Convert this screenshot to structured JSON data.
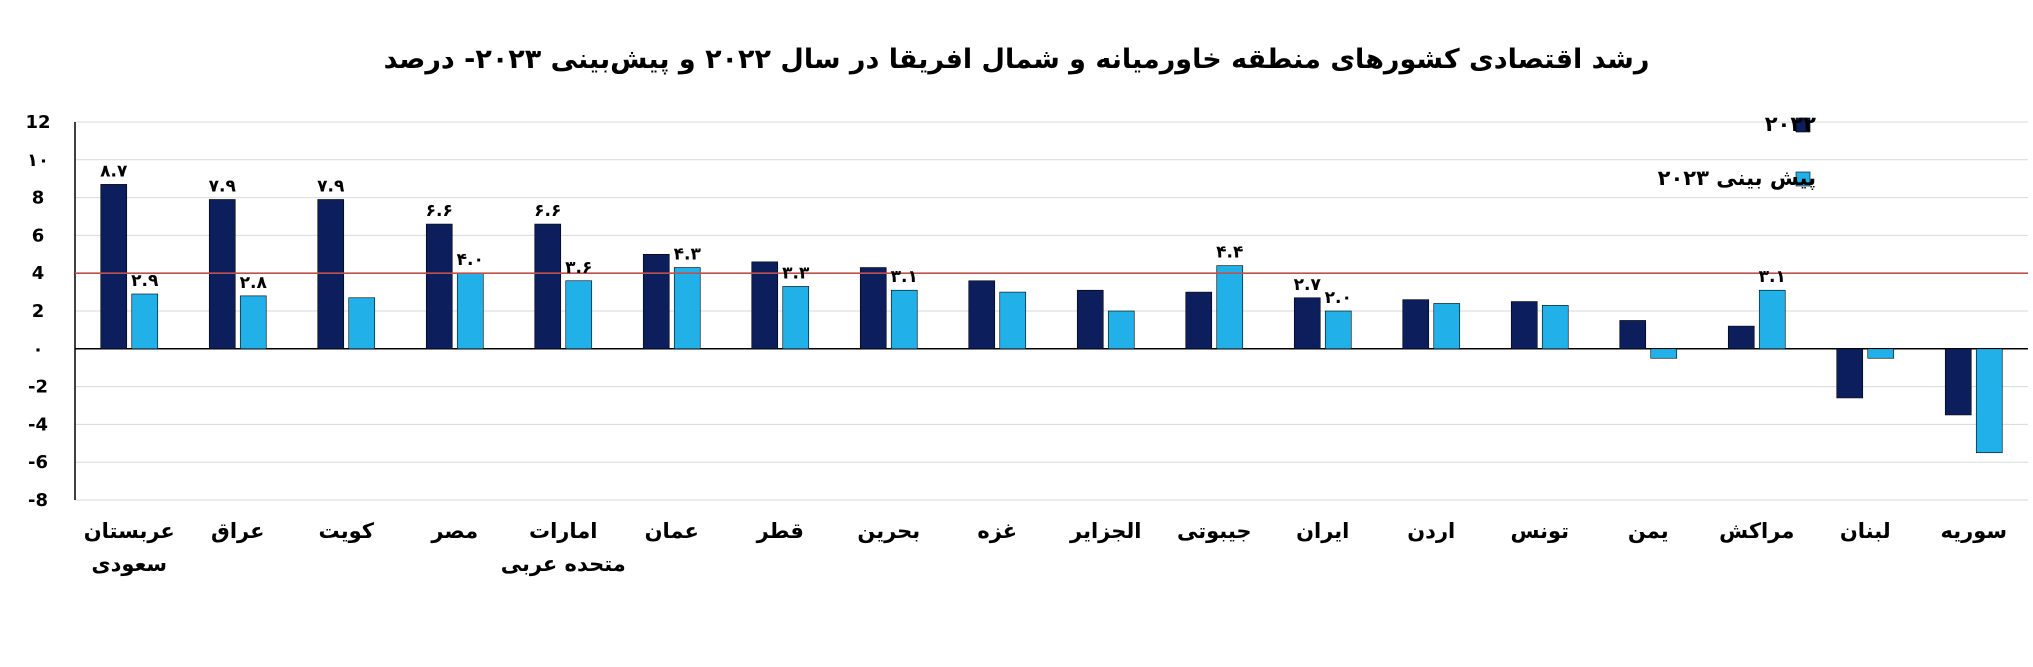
{
  "chart_data": {
    "type": "bar",
    "title": "رشد اقتصادی کشورهای منطقه خاورمیانه و شمال افریقا در سال ۲۰۲۲ و پیش‌بینی ۲۰۲۳- درصد",
    "categories": [
      [
        "عربستان",
        "سعودی"
      ],
      [
        "عراق"
      ],
      [
        "کویت"
      ],
      [
        "مصر"
      ],
      [
        "امارات",
        "متحده عربی"
      ],
      [
        "عمان"
      ],
      [
        "قطر"
      ],
      [
        "بحرین"
      ],
      [
        "غزه"
      ],
      [
        "الجزایر"
      ],
      [
        "جیبوتی"
      ],
      [
        "ایران"
      ],
      [
        "اردن"
      ],
      [
        "تونس"
      ],
      [
        "یمن"
      ],
      [
        "مراکش"
      ],
      [
        "لبنان"
      ],
      [
        "سوریه"
      ]
    ],
    "series": [
      {
        "name": "۲۰۲۲",
        "color": "#0c1f5c",
        "values": [
          8.7,
          7.9,
          7.9,
          6.6,
          6.6,
          5.0,
          4.6,
          4.3,
          3.6,
          3.1,
          3.0,
          2.7,
          2.6,
          2.5,
          1.5,
          1.2,
          -2.6,
          -3.5
        ],
        "data_labels": [
          "۸.۷",
          "۷.۹",
          "۷.۹",
          "۶.۶",
          "۶.۶",
          "",
          "",
          "",
          "",
          "",
          "",
          "۲.۷",
          "",
          "",
          "",
          "",
          "",
          ""
        ]
      },
      {
        "name": "پیش بینی ۲۰۲۳",
        "color": "#21b0e8",
        "values": [
          2.9,
          2.8,
          2.7,
          4.0,
          3.6,
          4.3,
          3.3,
          3.1,
          3.0,
          2.0,
          4.4,
          2.0,
          2.4,
          2.3,
          -0.5,
          3.1,
          -0.5,
          -5.5
        ],
        "data_labels": [
          "۲.۹",
          "۲.۸",
          "",
          "۴.۰",
          "۳.۶",
          "۴.۳",
          "۳.۳",
          "۳.۱",
          "",
          "",
          "۴.۴",
          "۲.۰",
          "",
          "",
          "",
          "۳.۱",
          "",
          ""
        ]
      }
    ],
    "reference_line": {
      "value": 4,
      "color": "#c0504d"
    },
    "ylim": [
      -8,
      12
    ],
    "yticks": [
      {
        "value": 12,
        "label": "12"
      },
      {
        "value": 10,
        "label": "۱۰"
      },
      {
        "value": 8,
        "label": "8"
      },
      {
        "value": 6,
        "label": "6"
      },
      {
        "value": 4,
        "label": "4"
      },
      {
        "value": 2,
        "label": "2"
      },
      {
        "value": 0,
        "label": "۰"
      },
      {
        "value": -2,
        "label": "-2"
      },
      {
        "value": -4,
        "label": "-4"
      },
      {
        "value": -6,
        "label": "-6"
      },
      {
        "value": -8,
        "label": "-8"
      }
    ],
    "grid": true,
    "legend_position": "top-right",
    "xlabel": "",
    "ylabel": ""
  }
}
